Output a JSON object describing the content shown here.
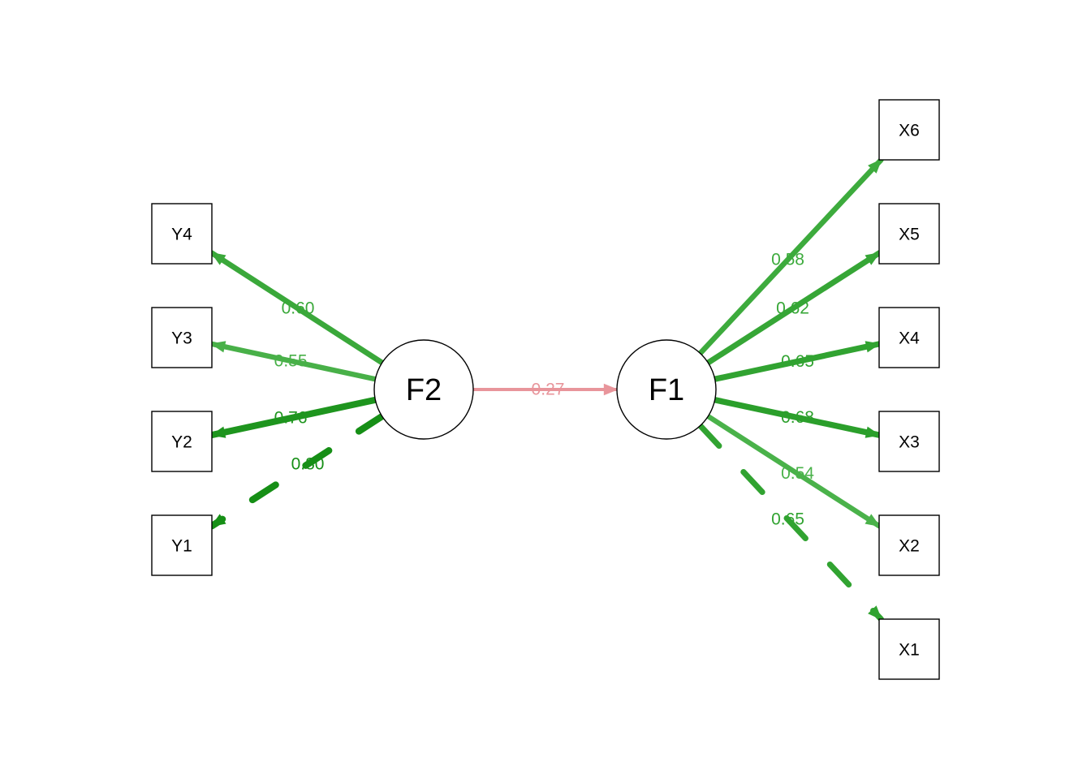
{
  "nodes": [
    {
      "id": "F2",
      "label": "F2",
      "shape": "circle"
    },
    {
      "id": "F1",
      "label": "F1",
      "shape": "circle"
    },
    {
      "id": "Y4",
      "label": "Y4",
      "shape": "box"
    },
    {
      "id": "Y3",
      "label": "Y3",
      "shape": "box"
    },
    {
      "id": "Y2",
      "label": "Y2",
      "shape": "box"
    },
    {
      "id": "Y1",
      "label": "Y1",
      "shape": "box"
    },
    {
      "id": "X6",
      "label": "X6",
      "shape": "box"
    },
    {
      "id": "X5",
      "label": "X5",
      "shape": "box"
    },
    {
      "id": "X4",
      "label": "X4",
      "shape": "box"
    },
    {
      "id": "X3",
      "label": "X3",
      "shape": "box"
    },
    {
      "id": "X2",
      "label": "X2",
      "shape": "box"
    },
    {
      "id": "X1",
      "label": "X1",
      "shape": "box"
    }
  ],
  "edges": [
    {
      "from": "F2",
      "to": "F1",
      "label": "-0.27",
      "value": -0.27,
      "color": "#e8959b",
      "dashed": false
    },
    {
      "from": "F2",
      "to": "Y4",
      "label": "0.60",
      "value": 0.6,
      "color": "#3aa83a",
      "dashed": false
    },
    {
      "from": "F2",
      "to": "Y3",
      "label": "0.55",
      "value": 0.55,
      "color": "#48b048",
      "dashed": false
    },
    {
      "from": "F2",
      "to": "Y2",
      "label": "0.76",
      "value": 0.76,
      "color": "#1e951e",
      "dashed": false
    },
    {
      "from": "F2",
      "to": "Y1",
      "label": "0.80",
      "value": 0.8,
      "color": "#168f16",
      "dashed": true
    },
    {
      "from": "F1",
      "to": "X6",
      "label": "0.58",
      "value": 0.58,
      "color": "#3dab3d",
      "dashed": false
    },
    {
      "from": "F1",
      "to": "X5",
      "label": "0.62",
      "value": 0.62,
      "color": "#36a636",
      "dashed": false
    },
    {
      "from": "F1",
      "to": "X4",
      "label": "0.65",
      "value": 0.65,
      "color": "#31a331",
      "dashed": false
    },
    {
      "from": "F1",
      "to": "X3",
      "label": "0.68",
      "value": 0.68,
      "color": "#2b9f2b",
      "dashed": false
    },
    {
      "from": "F1",
      "to": "X2",
      "label": "0.54",
      "value": 0.54,
      "color": "#4ab24a",
      "dashed": false
    },
    {
      "from": "F1",
      "to": "X1",
      "label": "0.65",
      "value": 0.65,
      "color": "#31a331",
      "dashed": true
    }
  ]
}
